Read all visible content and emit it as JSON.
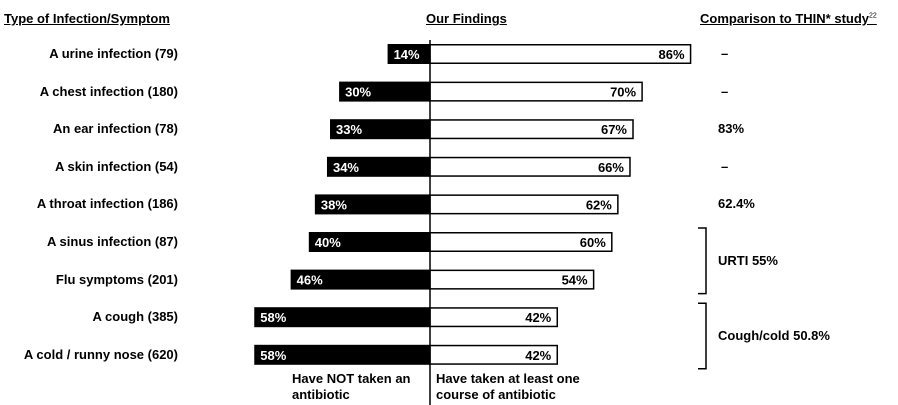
{
  "headers": {
    "left": "Type of Infection/Symptom",
    "middle": "Our Findings",
    "right": "Comparison to THIN* study",
    "right_superscript": "22"
  },
  "chart_data": {
    "type": "bar",
    "orientation": "horizontal-diverging",
    "categories": [
      "A urine infection (79)",
      "A chest infection (180)",
      "An ear infection (78)",
      "A skin infection (54)",
      "A throat infection (186)",
      "A sinus infection (87)",
      "Flu symptoms (201)",
      "A cough (385)",
      "A cold / runny nose (620)"
    ],
    "series": [
      {
        "name": "Have NOT taken an antibiotic",
        "values": [
          14,
          30,
          33,
          34,
          38,
          40,
          46,
          58,
          58
        ],
        "color": "#000000"
      },
      {
        "name": "Have taken at least one course of antibiotic",
        "values": [
          86,
          70,
          67,
          66,
          62,
          60,
          54,
          42,
          42
        ],
        "color": "#ffffff"
      }
    ],
    "value_labels": {
      "not_taken": [
        "14%",
        "30%",
        "33%",
        "34%",
        "38%",
        "40%",
        "46%",
        "58%",
        "58%"
      ],
      "taken": [
        "86%",
        "70%",
        "67%",
        "66%",
        "62%",
        "60%",
        "54%",
        "42%",
        "42%"
      ]
    },
    "unit": "%"
  },
  "comparison": {
    "values": [
      "–",
      "–",
      "83%",
      "–",
      "62.4%"
    ],
    "groups": [
      {
        "label": "URTI 55%",
        "rows": [
          5,
          6
        ]
      },
      {
        "label": "Cough/cold 50.8%",
        "rows": [
          7,
          8
        ]
      }
    ]
  },
  "footer": {
    "left_line1": "Have NOT taken an",
    "left_line2": "antibiotic",
    "right_line1": "Have taken at least one",
    "right_line2": "course of antibiotic"
  }
}
